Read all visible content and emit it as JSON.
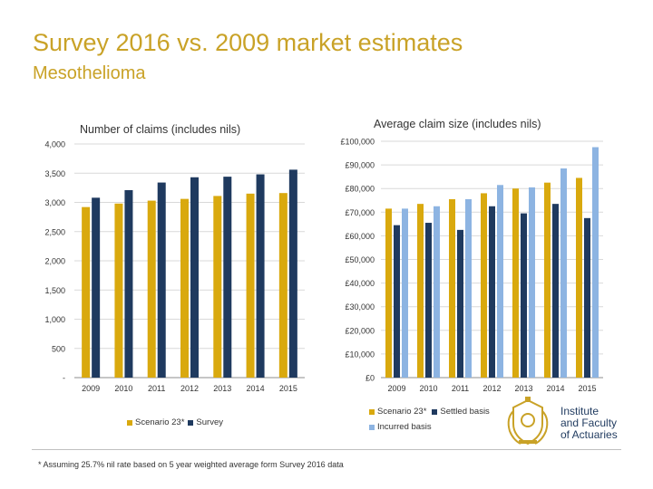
{
  "header": {
    "title": "Survey 2016 vs. 2009 market estimates",
    "subtitle": "Mesothelioma"
  },
  "colors": {
    "gold": "#D9A90E",
    "navy": "#1F3A5F",
    "lightblue": "#8DB4E2",
    "title": "#C9A227"
  },
  "chart_data": [
    {
      "type": "bar",
      "title": "Number of claims (includes nils)",
      "categories": [
        "2009",
        "2010",
        "2011",
        "2012",
        "2013",
        "2014",
        "2015"
      ],
      "series": [
        {
          "name": "Scenario 23*",
          "color": "#D9A90E",
          "values": [
            2920,
            2980,
            3030,
            3060,
            3110,
            3150,
            3160
          ]
        },
        {
          "name": "Survey",
          "color": "#1F3A5F",
          "values": [
            3080,
            3210,
            3340,
            3430,
            3440,
            3480,
            3560
          ]
        }
      ],
      "ylim": [
        0,
        4000
      ],
      "yticks": [
        0,
        500,
        1000,
        1500,
        2000,
        2500,
        3000,
        3500,
        4000
      ],
      "ytick_labels": [
        "-",
        "500",
        "1,000",
        "1,500",
        "2,000",
        "2,500",
        "3,000",
        "3,500",
        "4,000"
      ],
      "legend": "bottom"
    },
    {
      "type": "bar",
      "title": "Average claim size (includes nils)",
      "categories": [
        "2009",
        "2010",
        "2011",
        "2012",
        "2013",
        "2014",
        "2015"
      ],
      "series": [
        {
          "name": "Scenario 23*",
          "color": "#D9A90E",
          "values": [
            71500,
            73500,
            75500,
            78000,
            80000,
            82500,
            84500
          ]
        },
        {
          "name": "Settled basis",
          "color": "#1F3A5F",
          "values": [
            64500,
            65500,
            62500,
            72500,
            69500,
            73500,
            67500
          ]
        },
        {
          "name": "Incurred basis",
          "color": "#8DB4E2",
          "values": [
            71500,
            72500,
            75500,
            81500,
            80500,
            88500,
            97500
          ]
        }
      ],
      "ylim": [
        0,
        100000
      ],
      "yticks": [
        0,
        10000,
        20000,
        30000,
        40000,
        50000,
        60000,
        70000,
        80000,
        90000,
        100000
      ],
      "ytick_labels": [
        "£0",
        "£10,000",
        "£20,000",
        "£30,000",
        "£40,000",
        "£50,000",
        "£60,000",
        "£70,000",
        "£80,000",
        "£90,000",
        "£100,000"
      ],
      "legend": "bottom"
    }
  ],
  "footnote": "* Assuming 25.7% nil rate based on 5 year weighted average form Survey 2016 data",
  "logo": {
    "line1": "Institute",
    "line2": "and Faculty",
    "line3": "of Actuaries"
  }
}
